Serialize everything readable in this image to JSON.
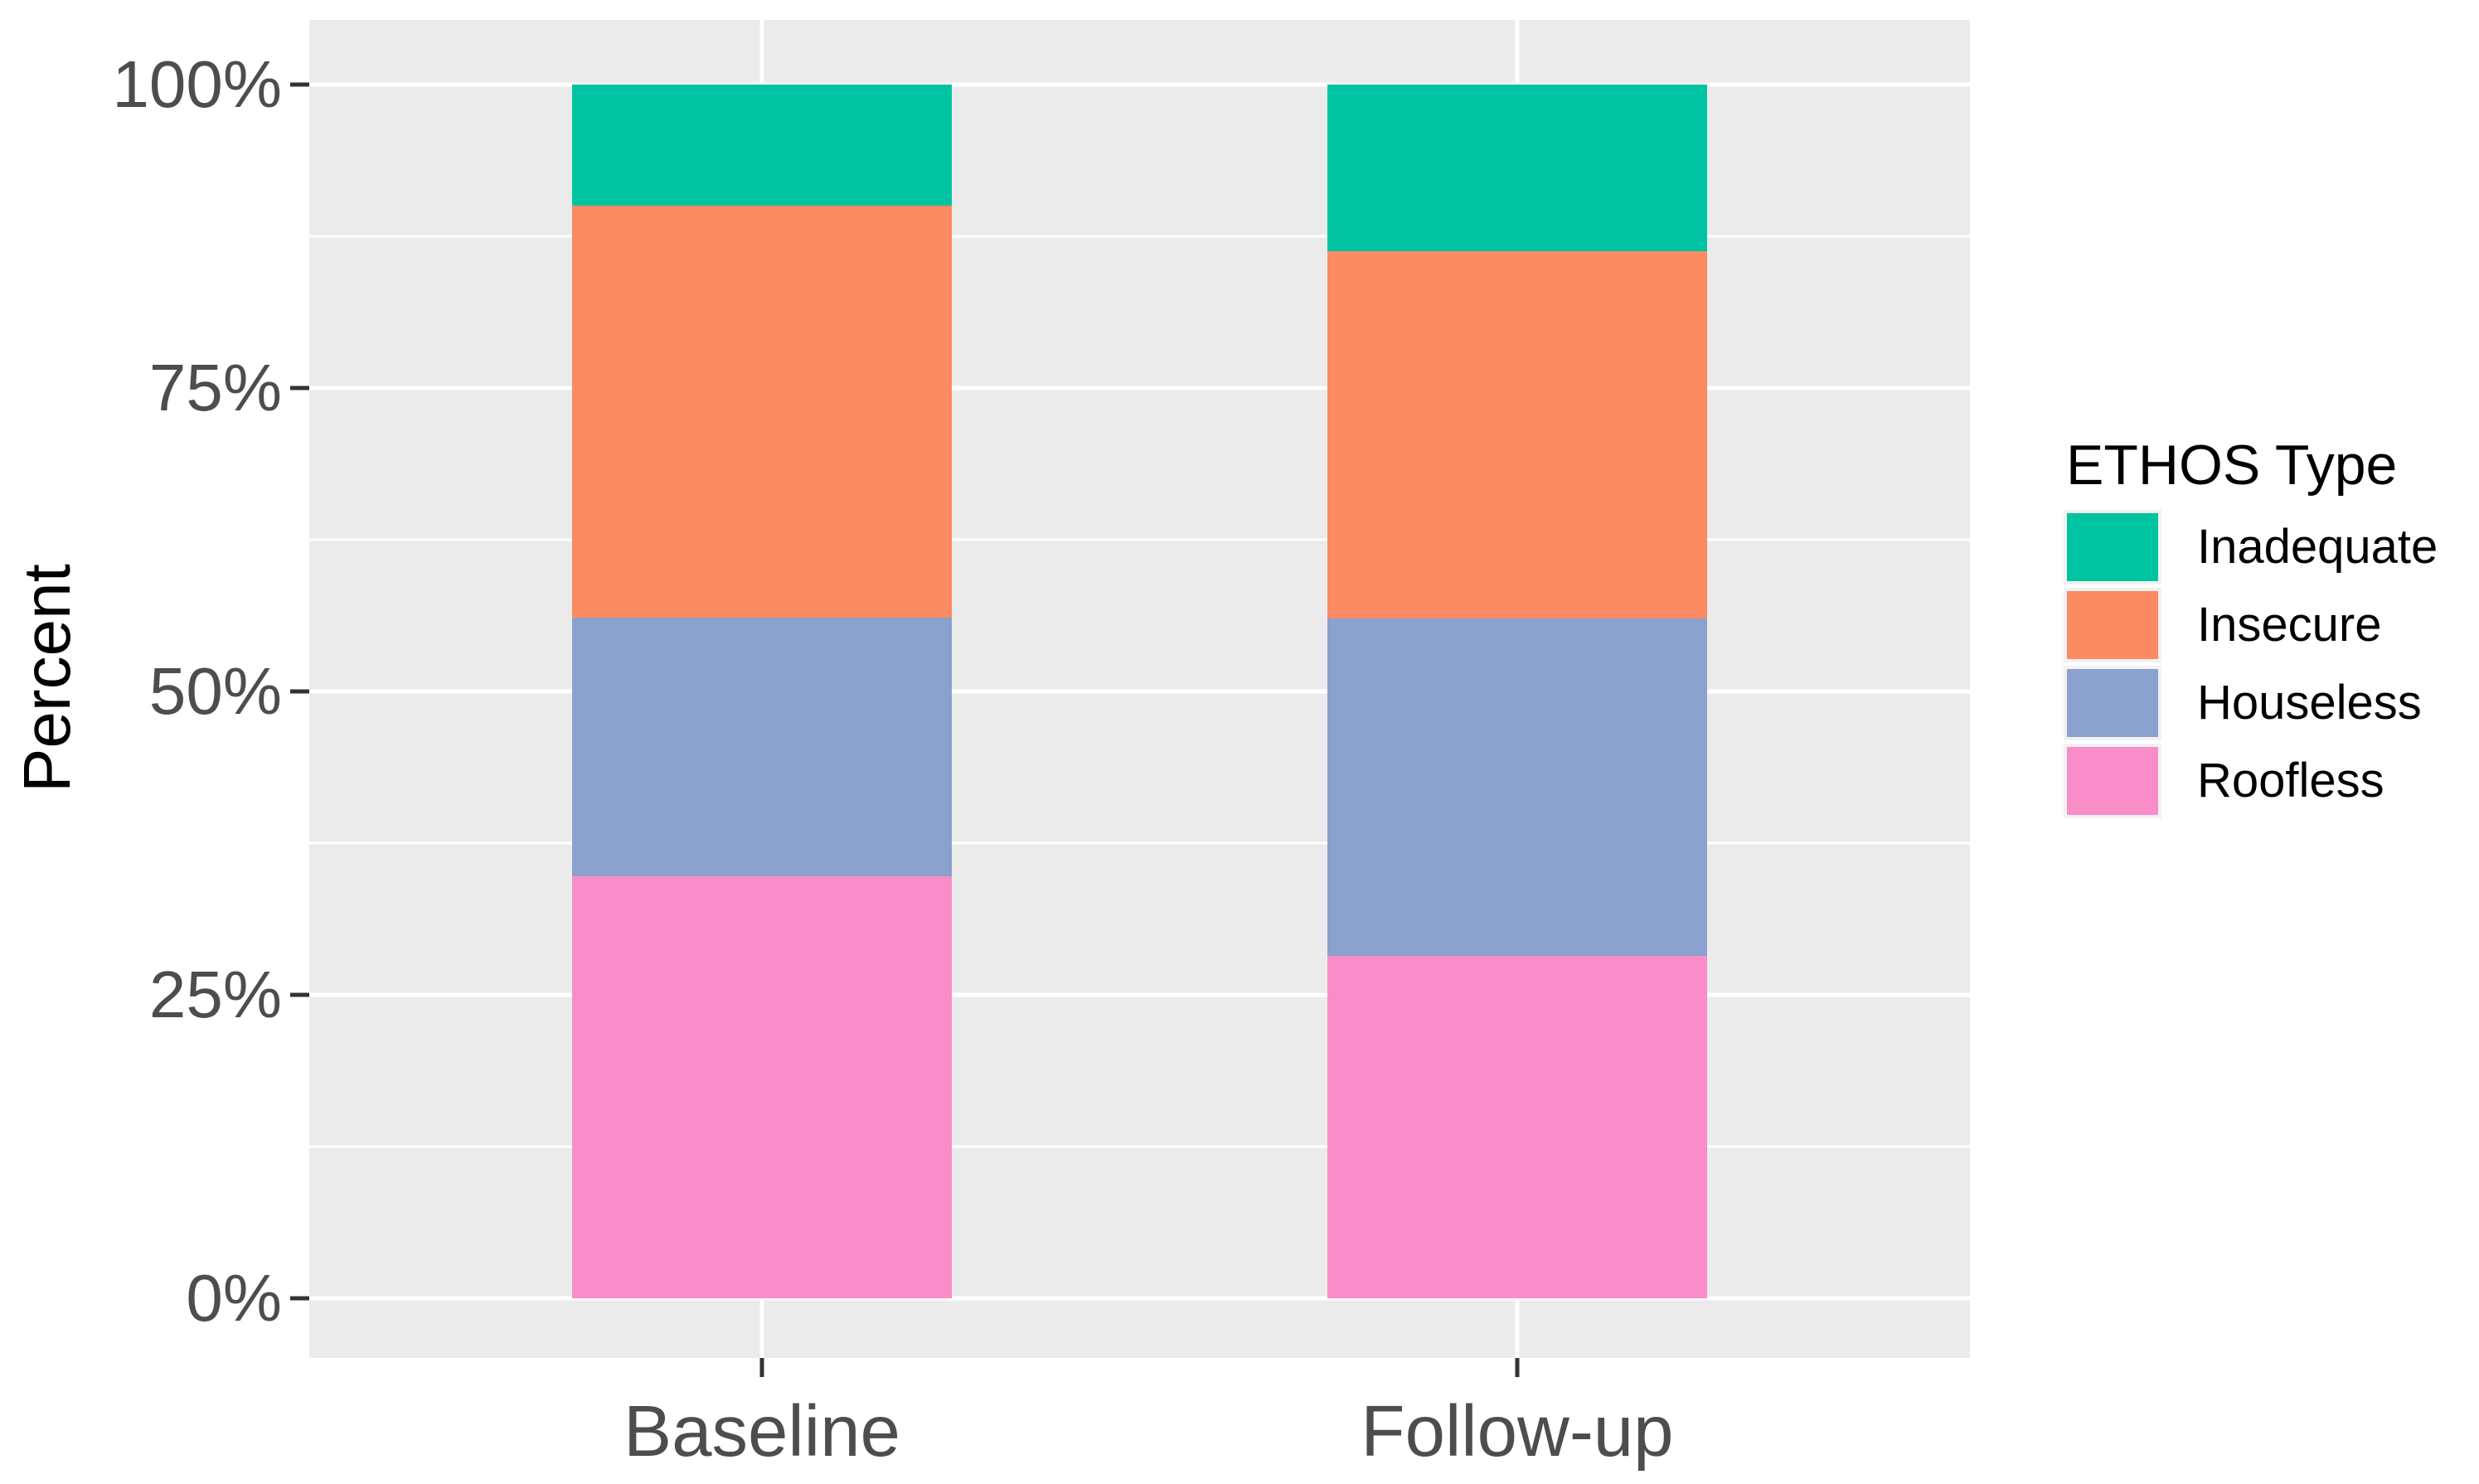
{
  "chart_data": {
    "type": "bar",
    "stacked": true,
    "normalized": "percent",
    "title": "",
    "xlabel": "",
    "ylabel": "Percent",
    "categories": [
      "Baseline",
      "Follow-up"
    ],
    "series": [
      {
        "name": "Roofless",
        "color": "#FA8CC7",
        "values": [
          34.8,
          28.2
        ]
      },
      {
        "name": "Houseless",
        "color": "#8AA1CD",
        "values": [
          21.3,
          27.8
        ]
      },
      {
        "name": "Insecure",
        "color": "#FC8A62",
        "values": [
          33.9,
          30.3
        ]
      },
      {
        "name": "Inadequate",
        "color": "#00C4A1",
        "values": [
          10.0,
          13.7
        ]
      }
    ],
    "stack_order_bottom_to_top": [
      "Roofless",
      "Houseless",
      "Insecure",
      "Inadequate"
    ],
    "ylim": [
      0,
      100
    ],
    "yticks": [
      {
        "value": 0,
        "label": "0%"
      },
      {
        "value": 25,
        "label": "25%"
      },
      {
        "value": 50,
        "label": "50%"
      },
      {
        "value": 75,
        "label": "75%"
      },
      {
        "value": 100,
        "label": "100%"
      }
    ],
    "minor_gridlines": [
      12.5,
      37.5,
      62.5,
      87.5
    ],
    "grid": true,
    "legend": {
      "title": "ETHOS Type",
      "position": "right",
      "order": [
        "Inadequate",
        "Insecure",
        "Houseless",
        "Roofless"
      ]
    }
  },
  "style": {
    "page_bg": "#FFFFFF",
    "panel_bg": "#EBEBEB",
    "gridline_color": "#FFFFFF",
    "axis_text_color": "#4D4D4D",
    "tick_mark_color": "#333333",
    "title_text_color": "#000000",
    "legend_key_bg": "#F2F2F2"
  }
}
